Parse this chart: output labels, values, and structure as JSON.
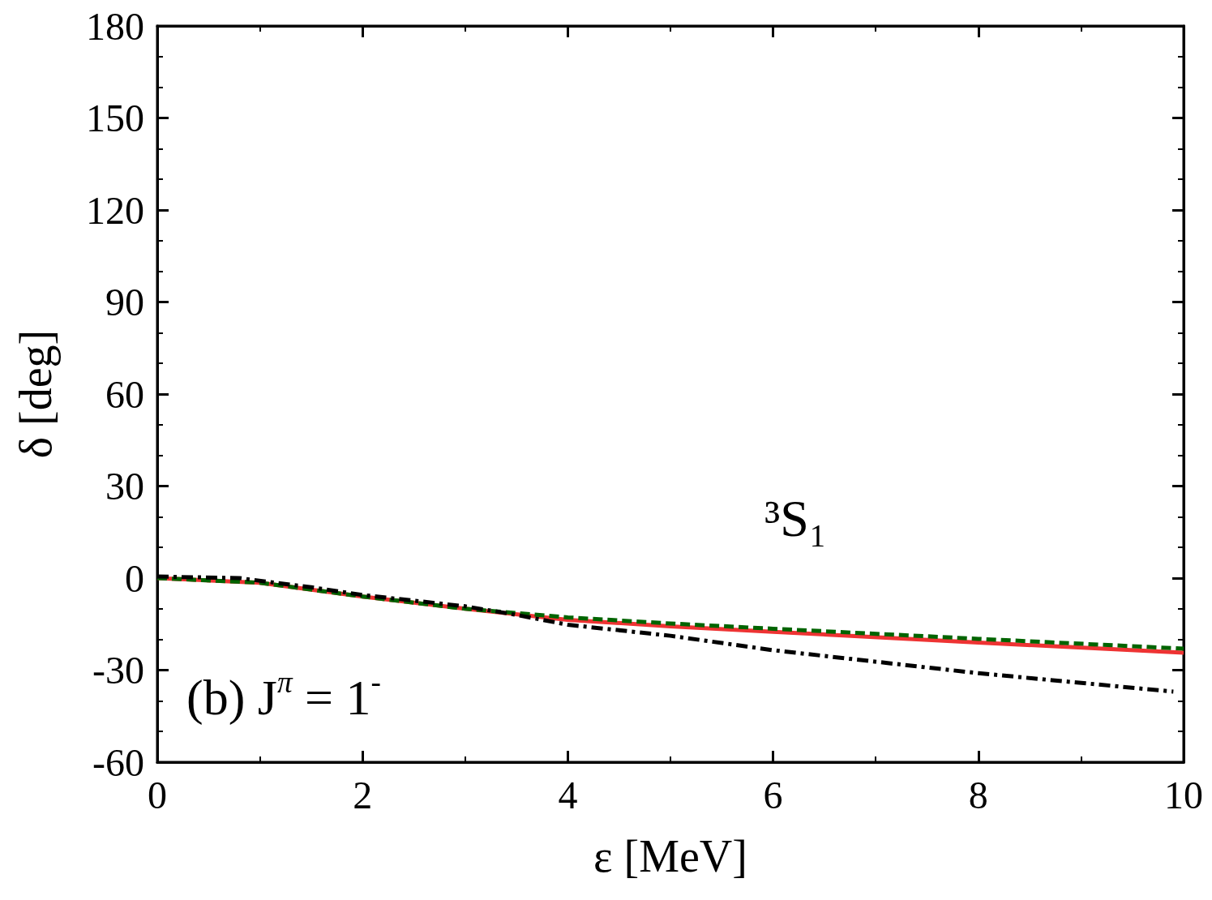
{
  "chart_data": {
    "type": "line",
    "xlabel": "ε [MeV]",
    "ylabel": "δ [deg]",
    "xlim": [
      0,
      10
    ],
    "xticks": [
      0,
      2,
      4,
      6,
      8,
      10
    ],
    "ylim": [
      -60,
      180
    ],
    "yticks": [
      -60,
      -30,
      0,
      30,
      60,
      90,
      120,
      150,
      180
    ],
    "marker": "none",
    "annotations": [
      "³S₁",
      "(b) J$^{π}$ = 1$^{-}$"
    ],
    "series": [
      {
        "color": "#ee3333",
        "line_style": "solid",
        "x": [
          0,
          1,
          2,
          3,
          4,
          5,
          6,
          8,
          10
        ],
        "values": [
          0,
          -1.5,
          -6,
          -10,
          -13.6,
          -15.7,
          -17.5,
          -21,
          -24.3
        ]
      },
      {
        "color": "#006400",
        "line_style": "dashed",
        "x": [
          0,
          1,
          2,
          3,
          4,
          5,
          6,
          8,
          10
        ],
        "values": [
          0,
          -1.5,
          -6,
          -10,
          -12.8,
          -14.8,
          -16.5,
          -19.8,
          -23
        ]
      },
      {
        "color": "#000000",
        "line_style": "dashdot",
        "x": [
          0,
          0.8,
          1.5,
          2,
          3,
          3.5,
          4,
          5,
          6,
          8,
          9.9
        ],
        "values": [
          0.5,
          0,
          -3,
          -5.5,
          -9.2,
          -12,
          -15.2,
          -18.8,
          -23.5,
          -31,
          -37
        ]
      }
    ]
  }
}
